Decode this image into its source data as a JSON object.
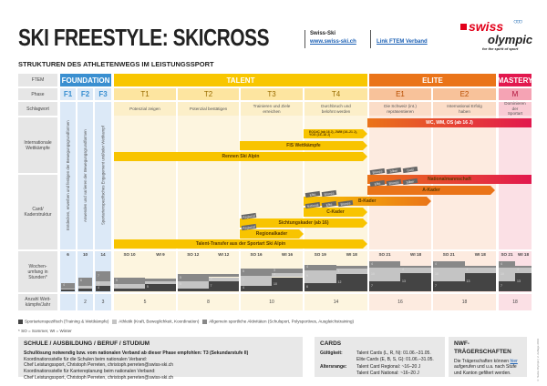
{
  "header": {
    "title": "SKI FREESTYLE: SKICROSS",
    "org": "Swiss-Ski",
    "org_link": "www.swiss-ski.ch",
    "ftem_link": "Link FTEM Verband",
    "logo_text": "swiss olympic",
    "logo_tagline": "for the spirit of sport"
  },
  "subtitle": "STRUKTUREN DES ATHLETENWEGS IM LEISTUNGSSPORT",
  "row_labels": {
    "ftem": "FTEM",
    "phase": "Phase",
    "schlagwort": "Schlagwort",
    "wettkaempfe": "Internationale Wettkämpfe",
    "kader": "Card/ Kaderstruktur",
    "wochen": "Wochen-umfang in Stunden*",
    "anzahl": "Anzahl Wett-kämpfe/Jahr"
  },
  "ftem": {
    "foundation": "FOUNDATION",
    "talent": "TALENT",
    "elite": "ELITE",
    "mastery": "MASTERY"
  },
  "colors": {
    "foundation": "#3a8fd0",
    "talent": "#f8c600",
    "elite": "#ea7419",
    "mastery": "#e2184e"
  },
  "phases": [
    {
      "id": "F1",
      "schlagwort": "Entdecken, erwerben und festigen der Bewegungsgrundformen"
    },
    {
      "id": "F2",
      "schlagwort": "Anwenden und variieren der Bewegungsgrundformen"
    },
    {
      "id": "F3",
      "schlagwort": "Sportartenspezifisches Engagement und/oder Wettkampf"
    },
    {
      "id": "T1",
      "schlagwort": "Potenzial zeigen"
    },
    {
      "id": "T2",
      "schlagwort": "Potenzial bestätigen"
    },
    {
      "id": "T3",
      "schlagwort": "Trainieren und Ziele erreichen"
    },
    {
      "id": "T4",
      "schlagwort": "Durchbruch und belohnt werden"
    },
    {
      "id": "E1",
      "schlagwort": "Die Schweiz (int.) repräsentieren"
    },
    {
      "id": "E2",
      "schlagwort": "International Erfolg haben"
    },
    {
      "id": "M",
      "schlagwort": "Dominieren der Sportart"
    }
  ],
  "competitions": {
    "wc": "WC, WM, OS (ab 16 J)",
    "eoc": "EOCdC (ab 16 J), JWM (16–21 J), YOG (15–18 J)",
    "fis": "FIS Wettkämpfe",
    "rennen": "Rennen Ski Alpin"
  },
  "kader": {
    "national": "Nationalmannschaft",
    "a": "A-Kader",
    "b": "B-Kader",
    "c": "C-Kader",
    "sichtung": "Sichtungskader (ab 16)",
    "regional": "Regionalkader",
    "transfer": "Talent-Transfer aus der Sportart Ski Alpin"
  },
  "badges": {
    "bronze": "Bronze",
    "silber": "Silber",
    "gold": "Gold",
    "elite": "Elite",
    "national": "National",
    "regional": "Regional"
  },
  "weekly_hours": [
    {
      "label": "6",
      "sport": 1,
      "athletik": 1,
      "allgemein": 4
    },
    {
      "label": "10",
      "sport": 2,
      "athletik": 2,
      "allgemein": 6
    },
    {
      "label": "14",
      "sport": 4,
      "athletik": 3,
      "allgemein": 7
    },
    {
      "label": "SO 10",
      "sport": 2,
      "athletik": 3,
      "allgemein": 5
    },
    {
      "label": "WI 9",
      "sport": 5,
      "athletik": 2,
      "allgemein": 2
    },
    {
      "label": "SO 12",
      "sport": 2,
      "athletik": 5,
      "allgemein": 5
    },
    {
      "label": "WI 12",
      "sport": 7,
      "athletik": 3,
      "allgemein": 2
    },
    {
      "label": "SO 16",
      "sport": 4,
      "athletik": 7,
      "allgemein": 5
    },
    {
      "label": "WI 16",
      "sport": 10,
      "athletik": 3,
      "allgemein": 3
    },
    {
      "label": "SO 19",
      "sport": 6,
      "athletik": 9,
      "allgemein": 4
    },
    {
      "label": "WI 18",
      "sport": 12,
      "athletik": 4,
      "allgemein": 2
    },
    {
      "label": "SO 21",
      "sport": 7,
      "athletik": 10,
      "allgemein": 4
    },
    {
      "label": "WI 18",
      "sport": 13,
      "athletik": 4,
      "allgemein": 1
    },
    {
      "label": "SO 21",
      "sport": 7,
      "athletik": 10,
      "allgemein": 4
    },
    {
      "label": "WI 18",
      "sport": 13,
      "athletik": 4,
      "allgemein": 1
    },
    {
      "label": "SO 21",
      "sport": 7,
      "athletik": 10,
      "allgemein": 4
    },
    {
      "label": "WI 18",
      "sport": 13,
      "athletik": 4,
      "allgemein": 1
    }
  ],
  "competitions_per_year": [
    "",
    "2",
    "3",
    "5",
    "8",
    "10",
    "14",
    "16",
    "18",
    "18"
  ],
  "legend": {
    "sport": "Sportartenspezifisch (Training & Wettkämpfe)",
    "athletik": "Athletik (Kraft, Beweglichkeit, Koordination)",
    "allgemein": "Allgemein sportliche Aktivitäten (Schulsport, Polysportives, Ausgleichstraining)",
    "footnote": "* SO = Sommer, WI = Winter"
  },
  "school": {
    "title": "SCHULE / AUSBILDUNG / BERUF / STUDIUM",
    "bold": "Schullösung notwendig bzw. vom nationalen Verband ab dieser Phase empfohlen: T3 (Sekundarstufe II)",
    "lines": [
      "Koordinationsstelle für die Schulen beim nationalen Verband:",
      "Chef Leistungssport, Christoph Perreten, christoph.perreten@swiss-ski.ch",
      "Koordinationsstelle für Karriereplanung beim nationalen Verband:",
      "Chef Leistungssport, Christoph Perreten, christoph.perreten@swiss-ski.ch"
    ]
  },
  "cards": {
    "title": "CARDS",
    "validity_label": "Gültigkeit:",
    "validity": [
      "Talent Cards (L, R, N): 01.06.–31.05.",
      "Elite Cards (E, B, S, G): 01.06.–31.05."
    ],
    "age_label": "Altersrange:",
    "age": [
      "Talent Card Regional: ~16–20 J",
      "Talent Card National: ~16–20 J"
    ]
  },
  "nwf": {
    "title": "NWF-TRÄGERSCHAFTEN",
    "text1": "Die Trägerschaften können",
    "link": "hier",
    "text2": "aufgerufen und u.a. nach Stufe und Kanton gefiltert werden."
  },
  "copyright": "© Swiss Olympic | 2. Auflage 2019"
}
